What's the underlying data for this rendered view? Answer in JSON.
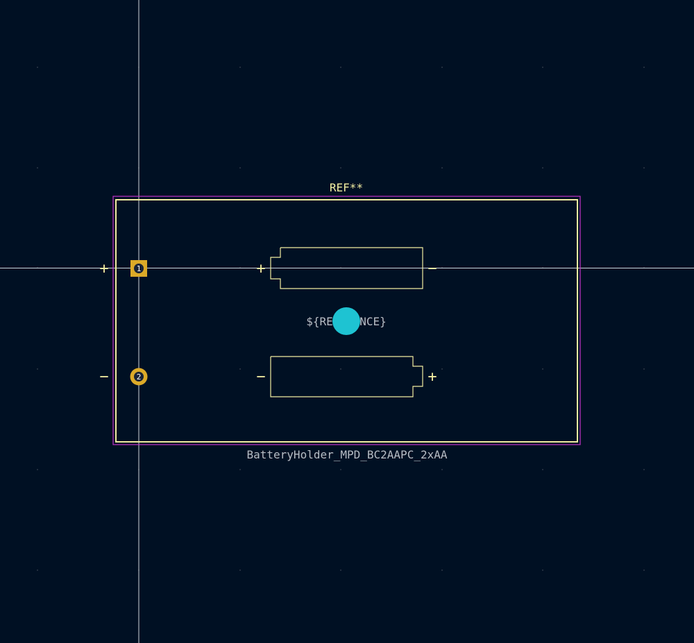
{
  "app": {
    "name": "PCB footprint editor canvas"
  },
  "colors": {
    "background": "#001023",
    "grid_dot": "#3a4452",
    "crosshair": "#d0d4da",
    "courtyard": "#c232c8",
    "silkscreen": "#f2eda1",
    "fab_text": "#b8bcc4",
    "pad": "#dcaa28",
    "pad_hole": "#1a2436",
    "pad_number": "#ffffff",
    "anchor": "#1ec3d2"
  },
  "footprint": {
    "reference": "REF**",
    "value": "BatteryHolder_MPD_BC2AAPC_2xAA",
    "fab_reference": "${REFERENCE}",
    "pads": [
      {
        "number": "1",
        "shape": "rect"
      },
      {
        "number": "2",
        "shape": "circle"
      }
    ],
    "polarity": {
      "plus": "+",
      "minus": "−"
    }
  }
}
